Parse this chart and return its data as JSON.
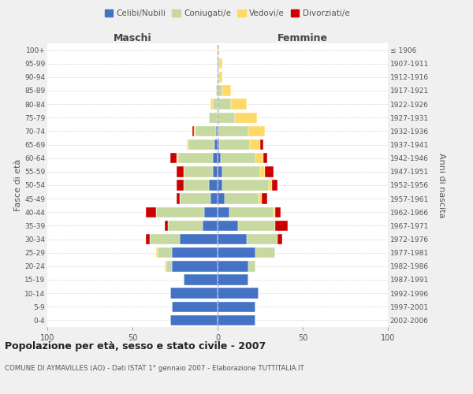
{
  "age_groups": [
    "0-4",
    "5-9",
    "10-14",
    "15-19",
    "20-24",
    "25-29",
    "30-34",
    "35-39",
    "40-44",
    "45-49",
    "50-54",
    "55-59",
    "60-64",
    "65-69",
    "70-74",
    "75-79",
    "80-84",
    "85-89",
    "90-94",
    "95-99",
    "100+"
  ],
  "birth_years": [
    "2002-2006",
    "1997-2001",
    "1992-1996",
    "1987-1991",
    "1982-1986",
    "1977-1981",
    "1972-1976",
    "1967-1971",
    "1962-1966",
    "1957-1961",
    "1952-1956",
    "1947-1951",
    "1942-1946",
    "1937-1941",
    "1932-1936",
    "1927-1931",
    "1922-1926",
    "1917-1921",
    "1912-1916",
    "1907-1911",
    "≤ 1906"
  ],
  "males": {
    "celibi": [
      28,
      27,
      28,
      20,
      27,
      27,
      22,
      9,
      8,
      4,
      5,
      3,
      3,
      2,
      1,
      0,
      0,
      0,
      0,
      0,
      0
    ],
    "coniugati": [
      0,
      0,
      0,
      0,
      3,
      8,
      18,
      20,
      28,
      18,
      15,
      17,
      20,
      15,
      12,
      5,
      3,
      1,
      0,
      0,
      0
    ],
    "vedovi": [
      0,
      0,
      0,
      0,
      1,
      1,
      0,
      0,
      0,
      0,
      0,
      0,
      1,
      1,
      1,
      0,
      1,
      0,
      0,
      0,
      0
    ],
    "divorziati": [
      0,
      0,
      0,
      0,
      0,
      0,
      2,
      2,
      6,
      2,
      4,
      4,
      4,
      0,
      1,
      0,
      0,
      0,
      0,
      0,
      0
    ]
  },
  "females": {
    "nubili": [
      22,
      22,
      24,
      18,
      18,
      22,
      17,
      12,
      7,
      4,
      3,
      3,
      2,
      1,
      0,
      0,
      0,
      0,
      0,
      0,
      0
    ],
    "coniugate": [
      0,
      0,
      0,
      0,
      4,
      12,
      18,
      22,
      26,
      20,
      27,
      22,
      20,
      18,
      18,
      10,
      8,
      3,
      1,
      1,
      0
    ],
    "vedove": [
      0,
      0,
      0,
      0,
      0,
      0,
      0,
      0,
      1,
      2,
      2,
      3,
      5,
      6,
      10,
      13,
      9,
      5,
      2,
      2,
      1
    ],
    "divorziate": [
      0,
      0,
      0,
      0,
      0,
      0,
      3,
      7,
      3,
      3,
      3,
      5,
      2,
      2,
      0,
      0,
      0,
      0,
      0,
      0,
      0
    ]
  },
  "colors": {
    "celibi": "#4472c4",
    "coniugati": "#c5d9a0",
    "vedovi": "#ffd966",
    "divorziati": "#cc0000"
  },
  "xlim": 100,
  "title": "Popolazione per età, sesso e stato civile - 2007",
  "subtitle": "COMUNE DI AYMAVILLES (AO) - Dati ISTAT 1° gennaio 2007 - Elaborazione TUTTITALIA.IT",
  "ylabel_left": "Fasce di età",
  "ylabel_right": "Anni di nascita",
  "xlabel_maschi": "Maschi",
  "xlabel_femmine": "Femmine",
  "background_color": "#f0f0f0",
  "plot_bg": "#ffffff",
  "legend_labels": [
    "Celibi/Nubili",
    "Coniugati/e",
    "Vedovi/e",
    "Divorziati/e"
  ]
}
